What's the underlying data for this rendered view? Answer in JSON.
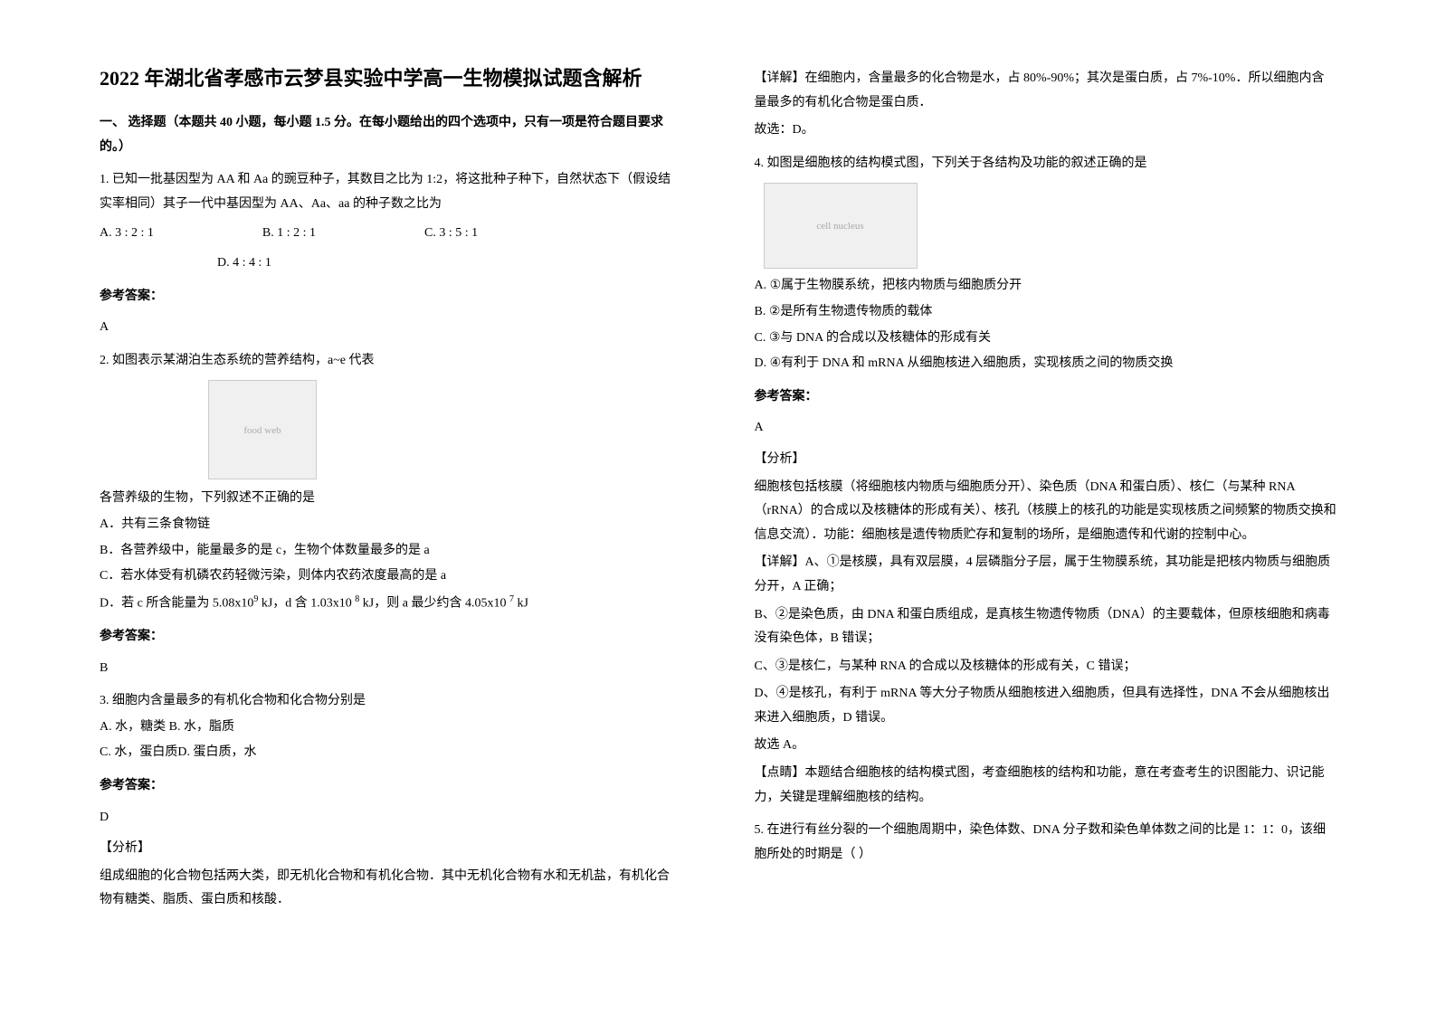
{
  "title": "2022 年湖北省孝感市云梦县实验中学高一生物模拟试题含解析",
  "section1_header": "一、 选择题（本题共 40 小题，每小题 1.5 分。在每小题给出的四个选项中，只有一项是符合题目要求的。）",
  "q1": {
    "text": "1. 已知一批基因型为 AA 和 Aa 的豌豆种子，其数目之比为 1:2，将这批种子种下，自然状态下（假设结实率相同）其子一代中基因型为 AA、Aa、aa 的种子数之比为",
    "optA": "A. 3 : 2 : 1",
    "optB": "B. 1 : 2 : 1",
    "optC": "C. 3 : 5 : 1",
    "optD": "D. 4 : 4 : 1",
    "answer_label": "参考答案：",
    "answer": "A"
  },
  "q2": {
    "text": "2. 如图表示某湖泊生态系统的营养结构，a~e 代表",
    "diagram_alt": "food web",
    "after_diagram": "各营养级的生物，下列叙述不正确的是",
    "optA": "A．共有三条食物链",
    "optB": "B．各营养级中，能量最多的是 c，生物个体数量最多的是 a",
    "optC": "C．若水体受有机磷农药轻微污染，则体内农药浓度最高的是 a",
    "optD_part1": "D．若 c 所含能量为 5.08x10",
    "optD_sup1": "9",
    "optD_part2": " kJ，d 含 1.03x10 ",
    "optD_sup2": "8",
    "optD_part3": " kJ，则 a 最少约含 4.05x10 ",
    "optD_sup3": "7",
    "optD_part4": " kJ",
    "answer_label": "参考答案：",
    "answer": "B"
  },
  "q3": {
    "text": "3. 细胞内含量最多的有机化合物和化合物分别是",
    "optAB": "A. 水，糖类   B. 水，脂质",
    "optCD": "C. 水，蛋白质D. 蛋白质，水",
    "answer_label": "参考答案：",
    "answer": "D",
    "analysis_label": "【分析】",
    "analysis": "组成细胞的化合物包括两大类，即无机化合物和有机化合物．其中无机化合物有水和无机盐，有机化合物有糖类、脂质、蛋白质和核酸．"
  },
  "right": {
    "detail1": "【详解】在细胞内，含量最多的化合物是水，占 80%-90%；其次是蛋白质，占 7%-10%．所以细胞内含量最多的有机化合物是蛋白质．",
    "select1": "故选：D。",
    "q4_text": "4. 如图是细胞核的结构模式图，下列关于各结构及功能的叙述正确的是",
    "diagram_alt": "cell nucleus",
    "q4_optA": "A.  ①属于生物膜系统，把核内物质与细胞质分开",
    "q4_optB": "B.  ②是所有生物遗传物质的载体",
    "q4_optC": "C.  ③与 DNA 的合成以及核糖体的形成有关",
    "q4_optD": "D.  ④有利于 DNA 和 mRNA 从细胞核进入细胞质，实现核质之间的物质交换",
    "answer_label": "参考答案：",
    "answer": "A",
    "analysis_label": "【分析】",
    "analysis_p1": "细胞核包括核膜（将细胞核内物质与细胞质分开）、染色质（DNA 和蛋白质）、核仁（与某种 RNA（rRNA）的合成以及核糖体的形成有关）、核孔（核膜上的核孔的功能是实现核质之间频繁的物质交换和信息交流）．功能：细胞核是遗传物质贮存和复制的场所，是细胞遗传和代谢的控制中心。",
    "detail_label": "【详解】A、①是核膜，具有双层膜，4 层磷脂分子层，属于生物膜系统，其功能是把核内物质与细胞质分开，A 正确；",
    "detail_B": "B、②是染色质，由 DNA 和蛋白质组成，是真核生物遗传物质（DNA）的主要载体，但原核细胞和病毒没有染色体，B 错误；",
    "detail_C": "C、③是核仁，与某种 RNA 的合成以及核糖体的形成有关，C 错误；",
    "detail_D": "D、④是核孔，有利于 mRNA 等大分子物质从细胞核进入细胞质，但具有选择性，DNA 不会从细胞核出来进入细胞质，D 错误。",
    "select2": "故选 A。",
    "point": "【点睛】本题结合细胞核的结构模式图，考查细胞核的结构和功能，意在考查考生的识图能力、识记能力，关键是理解细胞核的结构。",
    "q5_text": "5. 在进行有丝分裂的一个细胞周期中，染色体数、DNA 分子数和染色单体数之间的比是 1：1：0，该细胞所处的时期是（   ）"
  }
}
